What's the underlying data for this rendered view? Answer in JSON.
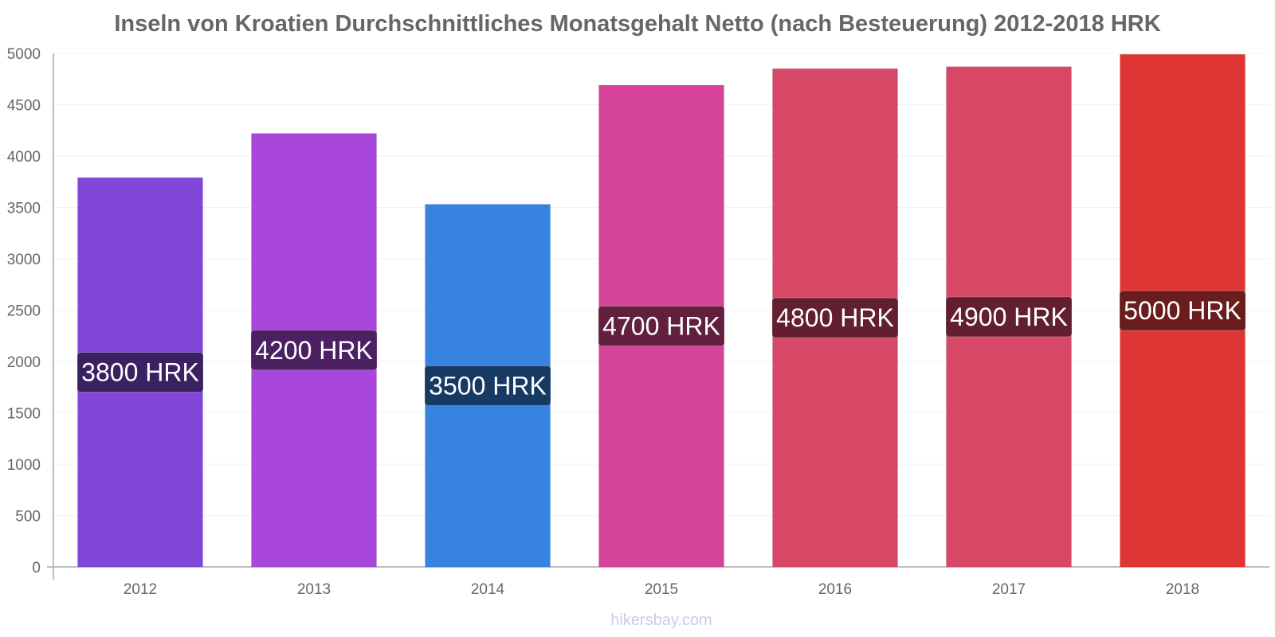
{
  "chart_data": {
    "type": "bar",
    "title": "Inseln von Kroatien Durchschnittliches Monatsgehalt Netto (nach Besteuerung) 2012-2018 HRK",
    "categories": [
      "2012",
      "2013",
      "2014",
      "2015",
      "2016",
      "2017",
      "2018"
    ],
    "values": [
      3790,
      4220,
      3530,
      4690,
      4850,
      4870,
      4990
    ],
    "data_labels": [
      "3800 HRK",
      "4200 HRK",
      "3500 HRK",
      "4700 HRK",
      "4800 HRK",
      "4900 HRK",
      "5000 HRK"
    ],
    "bar_colors": [
      "#8147d9",
      "#a847d9",
      "#3784e0",
      "#d6449a",
      "#d74866",
      "#d74866",
      "#e03535"
    ],
    "label_bg_colors": [
      "#3a2162",
      "#4b2162",
      "#173a62",
      "#62203f",
      "#62202f",
      "#62202f",
      "#6a1d1d"
    ],
    "y_ticks": [
      0,
      500,
      1000,
      1500,
      2000,
      2500,
      3000,
      3500,
      4000,
      4500,
      5000
    ],
    "ylim": [
      0,
      5000
    ],
    "xlabel": "",
    "ylabel": "",
    "grid": true,
    "legend": "none"
  },
  "watermark": "hikersbay.com"
}
